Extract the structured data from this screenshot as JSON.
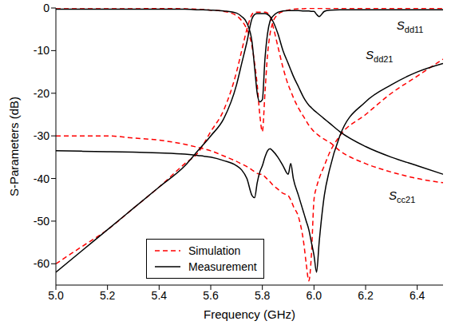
{
  "chart_data": {
    "type": "line",
    "xlabel": "Frequency (GHz)",
    "ylabel": "S-Parameters (dB)",
    "xlim": [
      5.0,
      6.5
    ],
    "xticks": [
      {
        "value": 5,
        "label": "5.0"
      },
      5.2,
      5.4,
      5.6,
      5.8,
      {
        "value": 6,
        "label": "6.0"
      },
      6.2,
      6.4
    ],
    "ylim": [
      -65,
      0
    ],
    "yticks": [
      0,
      -10,
      -20,
      -30,
      -40,
      -50,
      -60
    ],
    "grid": false,
    "legend": "lower left",
    "x": [
      5.0,
      5.1,
      5.2,
      5.3,
      5.4,
      5.5,
      5.55,
      5.6,
      5.65,
      5.7,
      5.72,
      5.74,
      5.76,
      5.77,
      5.78,
      5.79,
      5.8,
      5.81,
      5.82,
      5.83,
      5.84,
      5.86,
      5.88,
      5.9,
      5.91,
      5.92,
      5.94,
      5.96,
      5.97,
      5.98,
      5.99,
      6.0,
      6.01,
      6.02,
      6.04,
      6.06,
      6.1,
      6.2,
      6.3,
      6.4,
      6.5
    ],
    "series": [
      {
        "name": "Simulation",
        "color": "#ff0000",
        "line_style": "dashed",
        "values": {
          "Sdd11": [
            0,
            0,
            0,
            0,
            -0.1,
            -0.2,
            -0.3,
            -0.5,
            -0.8,
            -1.8,
            -3,
            -5,
            -9,
            -13,
            -18,
            -25,
            -29,
            -20,
            -11,
            -6,
            -3.5,
            -1.5,
            -0.8,
            -0.5,
            -0.4,
            -0.3,
            -0.2,
            -0.2,
            -0.1,
            -0.1,
            -0.1,
            -0.1,
            -0.1,
            -0.1,
            -0.1,
            -0.1,
            -0.1,
            -0.1,
            -0.1,
            -0.1,
            -0.1
          ],
          "Sdd21": [
            -60,
            -56,
            -52,
            -47,
            -42,
            -36.5,
            -34,
            -29,
            -24,
            -15,
            -10,
            -5,
            -1.5,
            -1,
            -1,
            -1,
            -1,
            -1,
            -1.2,
            -2,
            -4,
            -9,
            -14,
            -18,
            -19.5,
            -21,
            -23.5,
            -25.5,
            -26.5,
            -27.5,
            -28.3,
            -29,
            -29.5,
            -30,
            -30.8,
            -31.5,
            -33.5,
            -36.5,
            -38.5,
            -40,
            -41
          ],
          "Scc21": [
            -30,
            -30,
            -30,
            -30.5,
            -31,
            -32,
            -32.7,
            -33.5,
            -34.7,
            -36,
            -36.6,
            -37.2,
            -38,
            -38.4,
            -38.8,
            -39,
            -39,
            -39.6,
            -40.2,
            -40.8,
            -41.5,
            -42.5,
            -43.5,
            -44,
            -45,
            -46.5,
            -49,
            -55,
            -60,
            -64,
            -58,
            -45,
            -42,
            -40,
            -37,
            -34,
            -30,
            -25,
            -20,
            -16,
            -12
          ]
        }
      },
      {
        "name": "Measurement",
        "color": "#000000",
        "line_style": "solid",
        "values": {
          "Sdd11": [
            -0.3,
            -0.3,
            -0.3,
            -0.3,
            -0.3,
            -0.3,
            -0.4,
            -0.5,
            -0.7,
            -1.2,
            -2,
            -3.5,
            -8,
            -14,
            -20,
            -22,
            -21.5,
            -12,
            -6,
            -3,
            -2,
            -1,
            -0.7,
            -0.6,
            -0.6,
            -0.6,
            -0.6,
            -0.7,
            -0.7,
            -0.7,
            -0.8,
            -0.8,
            -1.5,
            -2,
            -0.8,
            -0.5,
            -0.4,
            -0.4,
            -0.4,
            -0.4,
            -0.4
          ],
          "Sdd21": [
            -62,
            -57,
            -52,
            -47,
            -42,
            -37,
            -33.5,
            -30,
            -26,
            -18,
            -13,
            -8,
            -2.5,
            -1.5,
            -1.3,
            -1.3,
            -1.3,
            -1.3,
            -1.5,
            -2,
            -3,
            -6,
            -10,
            -13,
            -14.5,
            -16,
            -18.5,
            -21,
            -22,
            -22.8,
            -23.4,
            -24,
            -24.5,
            -25,
            -26,
            -27,
            -29,
            -32.5,
            -35,
            -37,
            -39
          ],
          "Scc21": [
            -33.5,
            -33.6,
            -33.7,
            -33.8,
            -34,
            -34.3,
            -34.6,
            -35,
            -35.8,
            -37,
            -38,
            -40,
            -44,
            -44.5,
            -41,
            -38.5,
            -37,
            -35,
            -33.5,
            -33,
            -33.5,
            -35,
            -37,
            -39,
            -36.5,
            -40,
            -44,
            -48,
            -50,
            -52,
            -55,
            -58,
            -62,
            -55,
            -44,
            -38,
            -30,
            -22,
            -18,
            -15,
            -13
          ]
        }
      }
    ],
    "annotations": [
      {
        "text": "Sdd11",
        "x": 6.32,
        "y": -5
      },
      {
        "text": "Sdd21",
        "x": 6.2,
        "y": -12
      },
      {
        "text": "Scc21",
        "x": 6.29,
        "y": -45
      }
    ]
  }
}
